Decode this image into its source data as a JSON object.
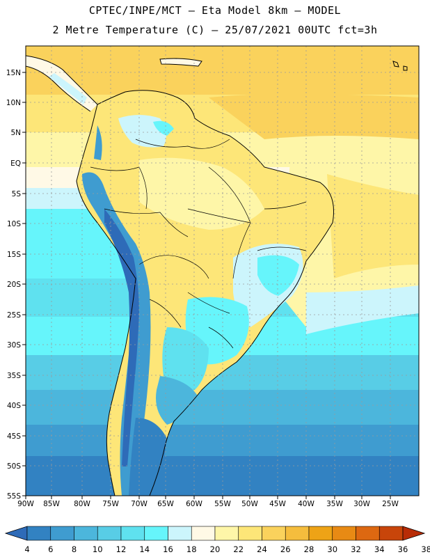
{
  "header": {
    "title_line1": "CPTEC/INPE/MCT –  Eta Model 8km – MODEL",
    "title_line2": "2 Metre Temperature (C) – 25/07/2021 00UTC fct=3h"
  },
  "map": {
    "lon_labels": [
      "90W",
      "85W",
      "80W",
      "75W",
      "70W",
      "65W",
      "60W",
      "55W",
      "50W",
      "45W",
      "40W",
      "35W",
      "30W",
      "25W"
    ],
    "lat_labels": [
      "15N",
      "10N",
      "5N",
      "EQ",
      "5S",
      "10S",
      "15S",
      "20S",
      "25S",
      "30S",
      "35S",
      "40S",
      "45S",
      "50S",
      "55S"
    ],
    "grid": "dotted",
    "land_outline_color": "#000000"
  },
  "colorbar": {
    "labels": [
      "4",
      "6",
      "8",
      "10",
      "12",
      "14",
      "16",
      "18",
      "20",
      "22",
      "24",
      "26",
      "28",
      "30",
      "32",
      "34",
      "36",
      "38"
    ],
    "colors": [
      "#2e6bb8",
      "#3282c2",
      "#3f9cd0",
      "#4cb6dc",
      "#58cde6",
      "#5fe1ef",
      "#66f5fb",
      "#ccf5fc",
      "#fff9e6",
      "#fef6a8",
      "#fde678",
      "#fad25c",
      "#f5bd3d",
      "#eea316",
      "#e88a14",
      "#dd6811",
      "#c8450a",
      "#b82c06"
    ]
  }
}
